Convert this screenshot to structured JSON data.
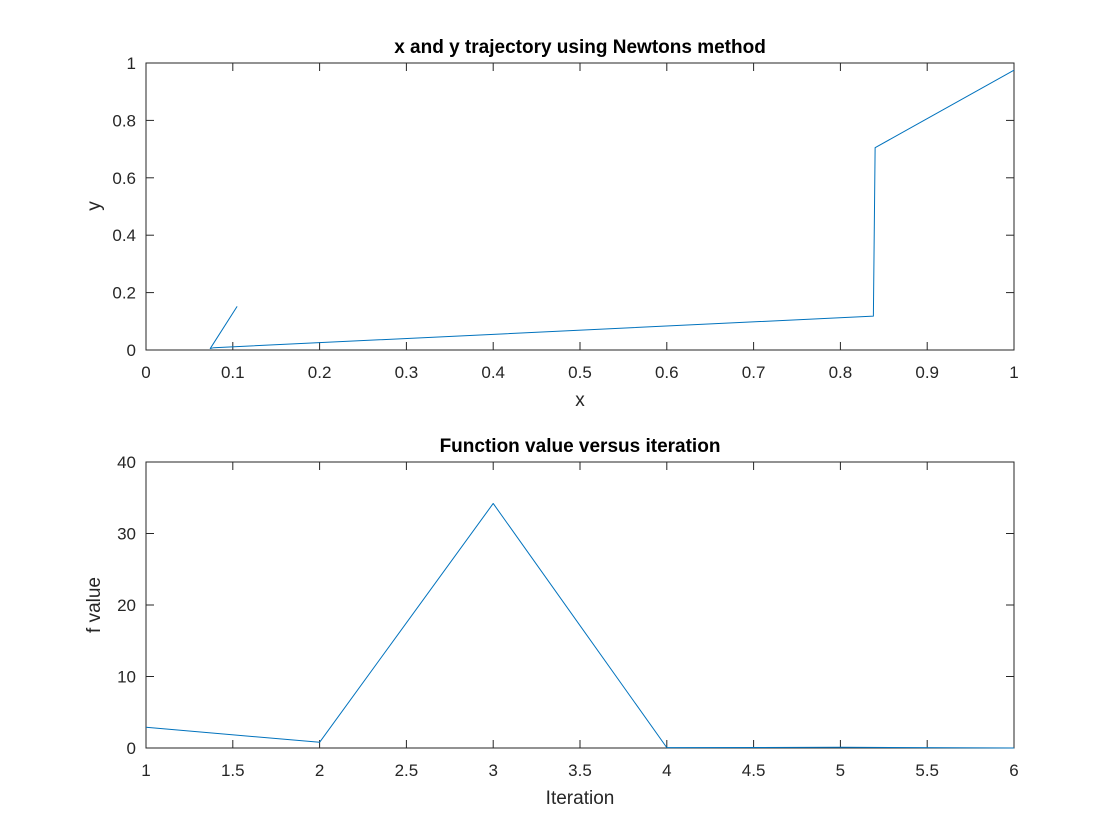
{
  "colors": {
    "line": "#0072BD",
    "axis": "#262626",
    "background": "#ffffff"
  },
  "chart_data": [
    {
      "type": "line",
      "title": "x and y trajectory using Newtons method",
      "xlabel": "x",
      "ylabel": "y",
      "xlim": [
        0,
        1
      ],
      "ylim": [
        0,
        1
      ],
      "xticks": [
        0,
        0.1,
        0.2,
        0.3,
        0.4,
        0.5,
        0.6,
        0.7,
        0.8,
        0.9,
        1
      ],
      "xtick_labels": [
        "0",
        "0.1",
        "0.2",
        "0.3",
        "0.4",
        "0.5",
        "0.6",
        "0.7",
        "0.8",
        "0.9",
        "1"
      ],
      "yticks": [
        0,
        0.2,
        0.4,
        0.6,
        0.8,
        1
      ],
      "ytick_labels": [
        "0",
        "0.2",
        "0.4",
        "0.6",
        "0.8",
        "1"
      ],
      "grid": false,
      "series": [
        {
          "x": [
            1.0,
            0.84,
            0.838,
            0.078,
            0.074,
            0.105
          ],
          "y": [
            0.975,
            0.705,
            0.118,
            0.008,
            0.005,
            0.152
          ]
        }
      ]
    },
    {
      "type": "line",
      "title": "Function value versus iteration",
      "xlabel": "Iteration",
      "ylabel": "f value",
      "xlim": [
        1,
        6
      ],
      "ylim": [
        0,
        40
      ],
      "xticks": [
        1,
        1.5,
        2,
        2.5,
        3,
        3.5,
        4,
        4.5,
        5,
        5.5,
        6
      ],
      "xtick_labels": [
        "1",
        "1.5",
        "2",
        "2.5",
        "3",
        "3.5",
        "4",
        "4.5",
        "5",
        "5.5",
        "6"
      ],
      "yticks": [
        0,
        10,
        20,
        30,
        40
      ],
      "ytick_labels": [
        "0",
        "10",
        "20",
        "30",
        "40"
      ],
      "grid": false,
      "series": [
        {
          "x": [
            1,
            2,
            3,
            4,
            5,
            6
          ],
          "y": [
            2.9,
            0.8,
            34.2,
            0.05,
            0.1,
            0.0
          ]
        }
      ]
    }
  ]
}
